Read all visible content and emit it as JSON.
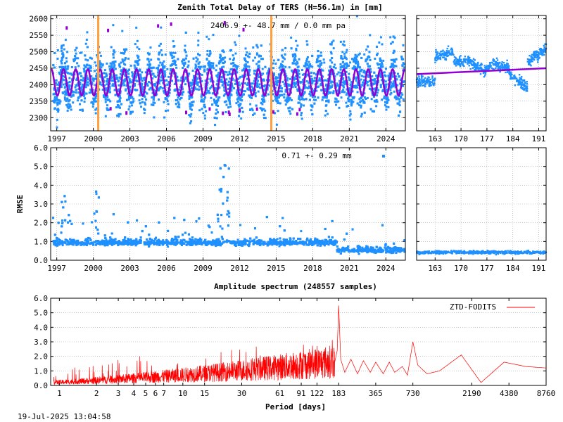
{
  "header": {
    "title": "Zenith Total Delay of TERS (H=56.1m) in [mm]",
    "timestamp": "19-Jul-2025 13:04:58"
  },
  "colors": {
    "observations": "#1e90ff",
    "model": "#9400d3",
    "event": "#ffa040",
    "spectrum": "#ff0000",
    "grid": "#a0a0a0"
  },
  "chart_data": [
    {
      "id": "ztd-timeseries",
      "type": "scatter",
      "title": "Zenith Total Delay of TERS (H=56.1m) in [mm]",
      "annotation": "2406.9 +-  48.7 mm /  0.0 mm pa",
      "mean": 2406.9,
      "std": 48.7,
      "trend_per_year": 0.0,
      "model_seasonal_amplitude": 40,
      "xlim": [
        1996.5,
        2025.6
      ],
      "ylim": [
        2260,
        2610
      ],
      "x_ticks": [
        "1997",
        "2000",
        "2003",
        "2006",
        "2009",
        "2012",
        "2015",
        "2018",
        "2021",
        "2024"
      ],
      "y_ticks": [
        "2300",
        "2350",
        "2400",
        "2450",
        "2500",
        "2550",
        "2600"
      ],
      "event_lines": [
        2000.4,
        2014.6
      ],
      "grid": true
    },
    {
      "id": "ztd-recent",
      "type": "scatter",
      "xlim": [
        158,
        193
      ],
      "ylim": [
        2260,
        2610
      ],
      "x_ticks": [
        "163",
        "170",
        "177",
        "184",
        "191"
      ],
      "model_line": [
        [
          158,
          2432
        ],
        [
          193,
          2450
        ]
      ],
      "grid": true
    },
    {
      "id": "rmse-timeseries",
      "type": "scatter",
      "ylabel": "RMSE",
      "annotation": "0.71 +-  0.29 mm",
      "mean": 0.71,
      "std": 0.29,
      "xlim": [
        1996.5,
        2025.6
      ],
      "ylim": [
        0,
        6
      ],
      "x_ticks": [
        "1997",
        "2000",
        "2003",
        "2006",
        "2009",
        "2012",
        "2015",
        "2018",
        "2021",
        "2024"
      ],
      "y_ticks": [
        "0.0",
        "1.0",
        "2.0",
        "3.0",
        "4.0",
        "5.0",
        "6.0"
      ],
      "grid": true
    },
    {
      "id": "rmse-recent",
      "type": "scatter",
      "xlim": [
        158,
        193
      ],
      "ylim": [
        0,
        6
      ],
      "x_ticks": [
        "163",
        "170",
        "177",
        "184",
        "191"
      ],
      "grid": true
    },
    {
      "id": "amplitude-spectrum",
      "type": "line",
      "title": "Amplitude spectrum (248557 samples)",
      "xlabel": "Period [days]",
      "xscale": "log",
      "xlim": [
        0.85,
        8760
      ],
      "ylim": [
        0,
        6
      ],
      "x_ticks": [
        "1",
        "2",
        "3",
        "4",
        "5",
        "6",
        "7",
        "10",
        "15",
        "30",
        "61",
        "91",
        "122",
        "183",
        "365",
        "730",
        "2190",
        "4380",
        "8760"
      ],
      "y_ticks": [
        "0.0",
        "1.0",
        "2.0",
        "3.0",
        "4.0",
        "5.0",
        "6.0"
      ],
      "legend": "top-right",
      "series": [
        {
          "name": "ZTD-FODITS",
          "peaks": [
            {
              "period": 183,
              "amplitude": 5.5
            },
            {
              "period": 730,
              "amplitude": 3.0
            },
            {
              "period": 1800,
              "amplitude": 2.1
            },
            {
              "period": 4000,
              "amplitude": 1.6
            },
            {
              "period": 8760,
              "amplitude": 1.2
            }
          ]
        }
      ],
      "grid": true
    }
  ]
}
